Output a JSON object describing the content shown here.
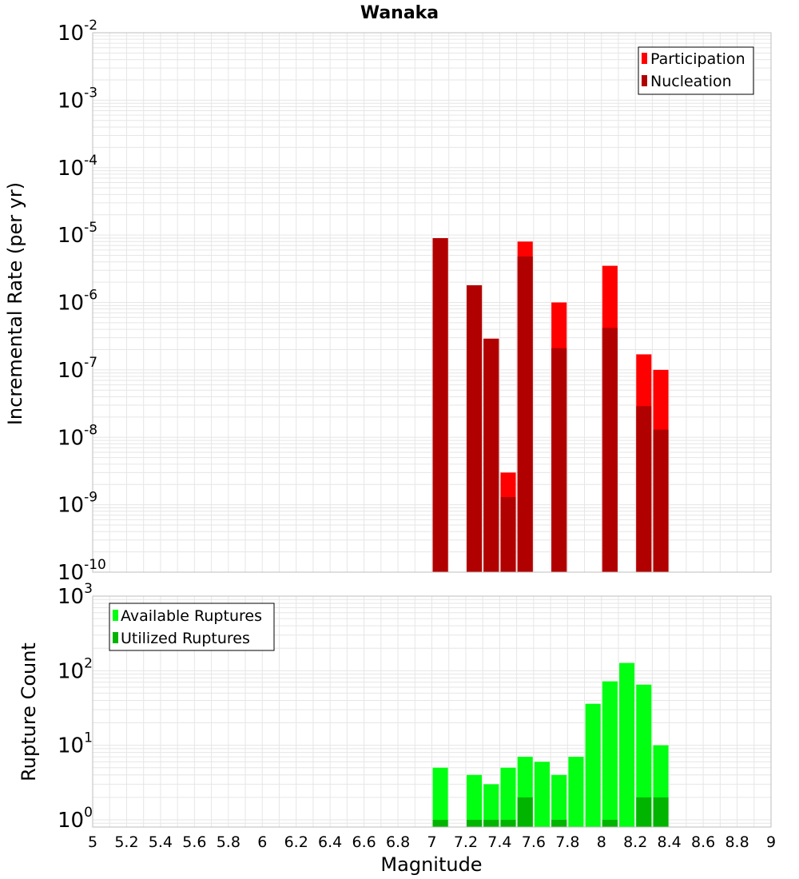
{
  "chart_data": [
    {
      "type": "bar",
      "title": "Wanaka",
      "xlabel": "",
      "ylabel": "Incremental Rate (per yr)",
      "y_scale": "log",
      "ylim": [
        1e-10,
        0.01
      ],
      "xlim": [
        5,
        9
      ],
      "grid": true,
      "legend_position": "top-right",
      "x": [
        7.05,
        7.25,
        7.35,
        7.45,
        7.55,
        7.75,
        8.05,
        8.25,
        8.35
      ],
      "series": [
        {
          "name": "Participation",
          "color": "#ff0000",
          "values": [
            9e-06,
            1.8e-06,
            2.9e-07,
            3e-09,
            8e-06,
            1e-06,
            3.5e-06,
            1.7e-07,
            1e-07
          ]
        },
        {
          "name": "Nucleation",
          "color": "#b10000",
          "values": [
            9e-06,
            1.8e-06,
            2.9e-07,
            1.3e-09,
            4.8e-06,
            2.1e-07,
            4.2e-07,
            2.9e-08,
            1.3e-08
          ]
        }
      ]
    },
    {
      "type": "bar",
      "title": "",
      "xlabel": "Magnitude",
      "ylabel": "Rupture Count",
      "y_scale": "log",
      "ylim": [
        0.8,
        1000
      ],
      "xlim": [
        5,
        9
      ],
      "grid": true,
      "legend_position": "top-left",
      "x": [
        7.05,
        7.25,
        7.35,
        7.45,
        7.55,
        7.65,
        7.75,
        7.85,
        7.95,
        8.05,
        8.15,
        8.25,
        8.35
      ],
      "series": [
        {
          "name": "Available Ruptures",
          "color": "#00ff10",
          "values": [
            5,
            4,
            3,
            5,
            7,
            6,
            4,
            7,
            36,
            72,
            127,
            65,
            10
          ]
        },
        {
          "name": "Utilized Ruptures",
          "color": "#00b400",
          "values": [
            1,
            1,
            1,
            1,
            2,
            0,
            1,
            0,
            0,
            1,
            0,
            2,
            2
          ]
        }
      ]
    }
  ],
  "x_ticks": [
    "5",
    "5.2",
    "5.4",
    "5.6",
    "5.8",
    "6",
    "6.2",
    "6.4",
    "6.6",
    "6.8",
    "7",
    "7.2",
    "7.4",
    "7.6",
    "7.8",
    "8",
    "8.2",
    "8.4",
    "8.6",
    "8.8",
    "9"
  ],
  "top_y_ticks": [
    {
      "base": "10",
      "exp": "-2"
    },
    {
      "base": "10",
      "exp": "-3"
    },
    {
      "base": "10",
      "exp": "-4"
    },
    {
      "base": "10",
      "exp": "-5"
    },
    {
      "base": "10",
      "exp": "-6"
    },
    {
      "base": "10",
      "exp": "-7"
    },
    {
      "base": "10",
      "exp": "-8"
    },
    {
      "base": "10",
      "exp": "-9"
    },
    {
      "base": "10",
      "exp": "-10"
    }
  ],
  "bottom_y_ticks": [
    {
      "base": "10",
      "exp": "3"
    },
    {
      "base": "10",
      "exp": "2"
    },
    {
      "base": "10",
      "exp": "1"
    },
    {
      "base": "10",
      "exp": "0"
    }
  ],
  "colors": {
    "grid": "#e6e6e6",
    "frame": "#bdbdbd",
    "legend_border": "#000000"
  }
}
